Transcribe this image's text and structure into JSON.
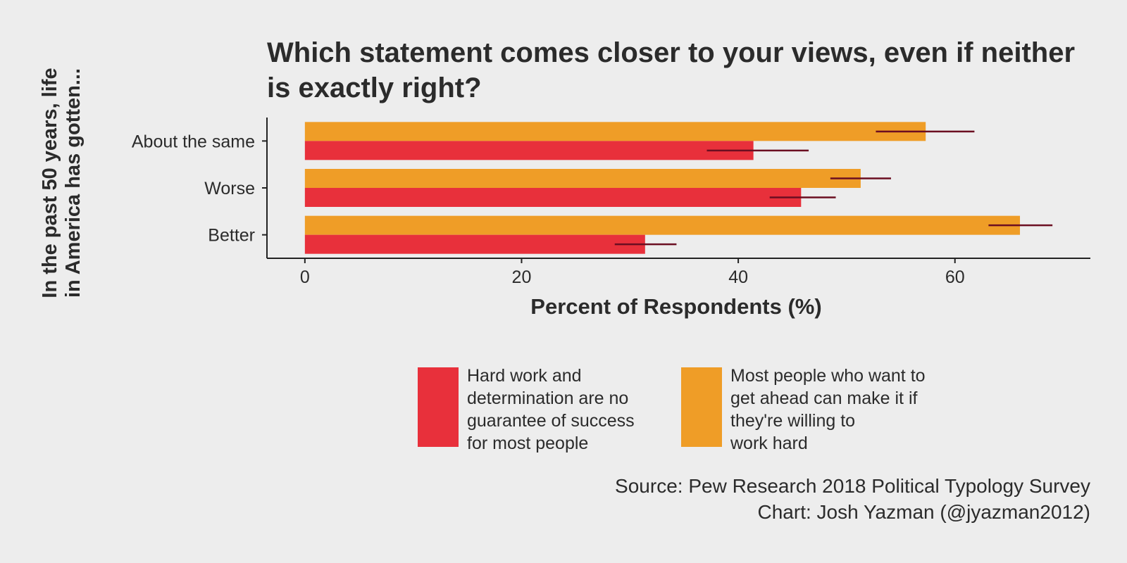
{
  "chart_data": {
    "type": "bar",
    "orientation": "horizontal",
    "title": "Which statement comes closer to your views, even if neither is exactly right?",
    "xlabel": "Percent of Respondents (%)",
    "ylabel_lines": [
      "In the past 50 years, life",
      "in America has gotten..."
    ],
    "categories": [
      "About the same",
      "Worse",
      "Better"
    ],
    "xlim": [
      -3.5,
      72.5
    ],
    "xticks": [
      0,
      20,
      40,
      60
    ],
    "grid": false,
    "legend_position": "bottom",
    "series": [
      {
        "name": "Most people who want to get ahead can make it if they're willing to work hard",
        "legend_lines": [
          "Most people who want to",
          "get ahead can make it if",
          "they're willing to",
          "work hard"
        ],
        "color": "#EF9D27",
        "values": [
          57.3,
          51.3,
          66.0
        ],
        "error_low": [
          52.7,
          48.5,
          63.1
        ],
        "error_high": [
          61.8,
          54.1,
          69.0
        ]
      },
      {
        "name": "Hard work and determination are no guarantee of success for most people",
        "legend_lines": [
          "Hard work and",
          "determination are no",
          "guarantee of success",
          "for most people"
        ],
        "color": "#E8303B",
        "values": [
          41.4,
          45.8,
          31.4
        ],
        "error_low": [
          37.1,
          42.9,
          28.6
        ],
        "error_high": [
          46.5,
          49.0,
          34.3
        ]
      }
    ],
    "error_bar_color": "#6B0E21"
  },
  "caption": {
    "source": "Source: Pew Research 2018 Political Typology Survey",
    "credit": "Chart: Josh Yazman (@jyazman2012)"
  }
}
